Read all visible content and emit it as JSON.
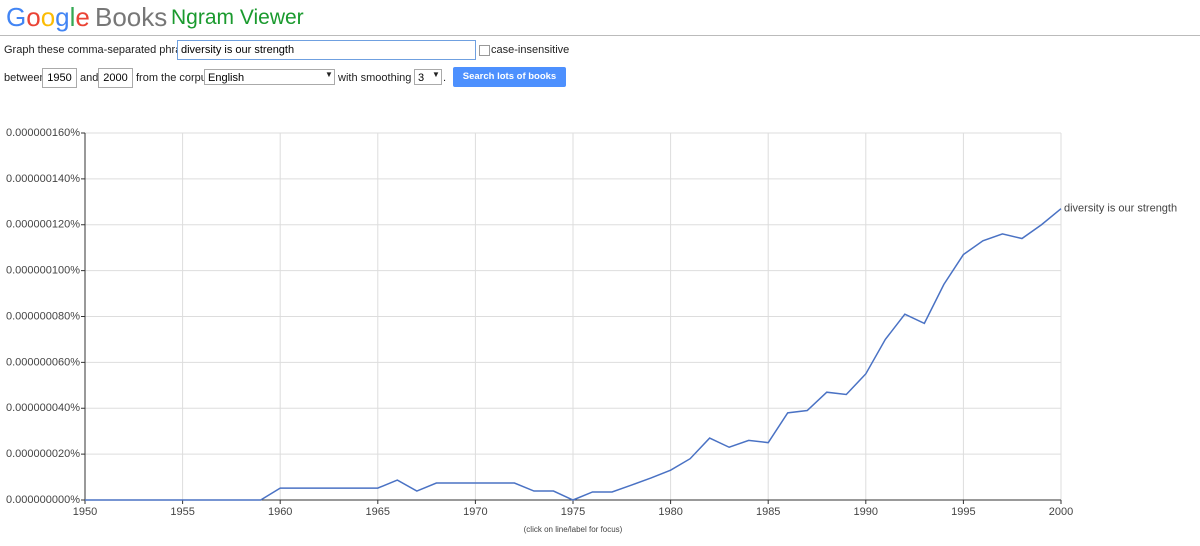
{
  "header": {
    "logo": "Google",
    "product": "Books",
    "app": "Ngram Viewer"
  },
  "form": {
    "phrases_label": "Graph these comma-separated phrases:",
    "phrases": "diversity is our strength",
    "case_insensitive": "case-insensitive",
    "between": "between",
    "start_year": "1950",
    "and": "and",
    "end_year": "2000",
    "corpus_label": "from the corpus",
    "corpus": "English",
    "smoothing_label": "with smoothing of",
    "smoothing": "3",
    "period": ".",
    "button": "Search lots of books"
  },
  "chart_data": {
    "type": "line",
    "x": [
      1950,
      1951,
      1952,
      1953,
      1954,
      1955,
      1956,
      1957,
      1958,
      1959,
      1960,
      1961,
      1962,
      1963,
      1964,
      1965,
      1966,
      1967,
      1968,
      1969,
      1970,
      1971,
      1972,
      1973,
      1974,
      1975,
      1976,
      1977,
      1978,
      1979,
      1980,
      1981,
      1982,
      1983,
      1984,
      1985,
      1986,
      1987,
      1988,
      1989,
      1990,
      1991,
      1992,
      1993,
      1994,
      1995,
      1996,
      1997,
      1998,
      1999,
      2000
    ],
    "series": [
      {
        "name": "diversity is our strength",
        "color": "#4a72c4",
        "values": [
          0,
          0,
          0,
          0,
          0,
          0,
          0,
          0,
          0,
          0,
          5.2e-09,
          5.2e-09,
          5.2e-09,
          5.2e-09,
          5.2e-09,
          5.2e-09,
          8.7e-09,
          3.9e-09,
          7.4e-09,
          7.4e-09,
          7.4e-09,
          7.4e-09,
          7.4e-09,
          3.9e-09,
          3.9e-09,
          0,
          3.5e-09,
          3.5e-09,
          6.5e-09,
          9.6e-09,
          1.3e-08,
          1.8e-08,
          2.7e-08,
          2.3e-08,
          2.6e-08,
          2.5e-08,
          3.8e-08,
          3.9e-08,
          4.7e-08,
          4.6e-08,
          5.5e-08,
          7e-08,
          8.1e-08,
          7.7e-08,
          9.4e-08,
          1.07e-07,
          1.13e-07,
          1.16e-07,
          1.14e-07,
          1.2e-07,
          1.27e-07
        ]
      }
    ],
    "xlim": [
      1950,
      2000
    ],
    "xticks": [
      1950,
      1955,
      1960,
      1965,
      1970,
      1975,
      1980,
      1985,
      1990,
      1995,
      2000
    ],
    "ylim": [
      0,
      1.6e-07
    ],
    "yticks": [
      {
        "value": 0,
        "label": "0.000000000%"
      },
      {
        "value": 2e-08,
        "label": "0.000000020%"
      },
      {
        "value": 4e-08,
        "label": "0.000000040%"
      },
      {
        "value": 6e-08,
        "label": "0.000000060%"
      },
      {
        "value": 8e-08,
        "label": "0.000000080%"
      },
      {
        "value": 1e-07,
        "label": "0.000000100%"
      },
      {
        "value": 1.2e-07,
        "label": "0.000000120%"
      },
      {
        "value": 1.4e-07,
        "label": "0.000000140%"
      },
      {
        "value": 1.6e-07,
        "label": "0.000000160%"
      }
    ],
    "grid": true,
    "note": "(click on line/label for focus)"
  }
}
